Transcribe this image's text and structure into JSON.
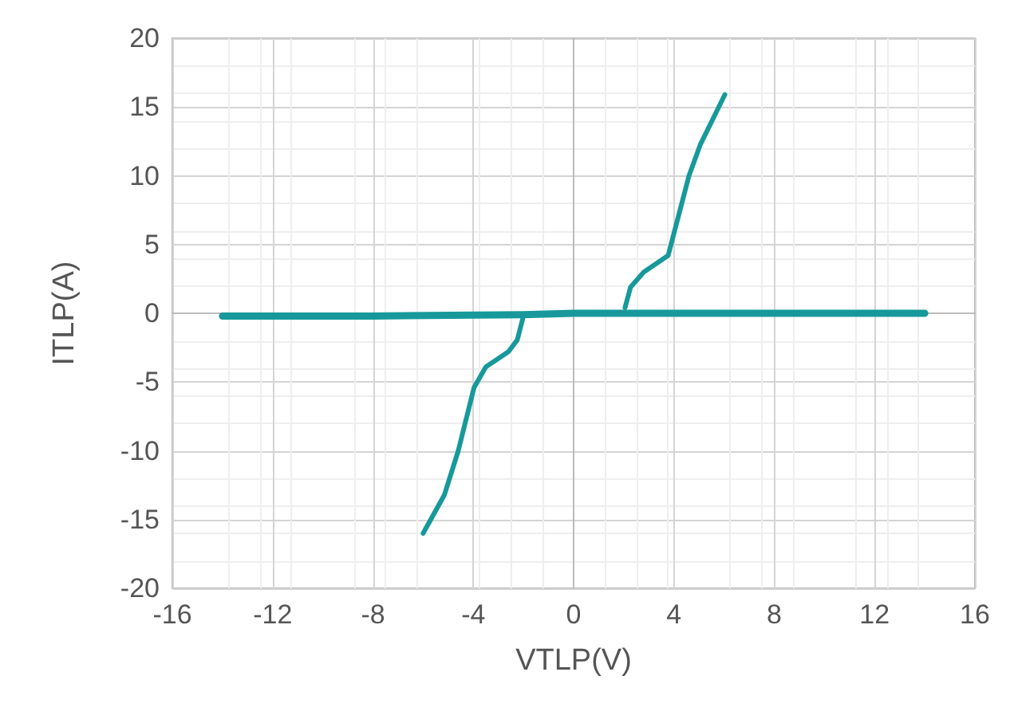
{
  "chart_data": {
    "type": "line",
    "xlabel": "VTLP(V)",
    "ylabel": "ITLP(A)",
    "xlim": [
      -16,
      16
    ],
    "xticks": [
      -16,
      -12,
      -8,
      -4,
      0,
      4,
      8,
      12,
      16
    ],
    "ylim": [
      -20,
      20
    ],
    "yticks": [
      -20,
      -15,
      -10,
      -5,
      0,
      5,
      10,
      15,
      20
    ],
    "grid": true,
    "marker": "none",
    "line_style": "solid",
    "series": [
      {
        "color": "#17999b",
        "x": [
          -6,
          -5.15,
          -4.6,
          -3.97,
          -3.5,
          -2.6,
          -2.25,
          -2.03
        ],
        "values": [
          -16,
          -13.2,
          -10,
          -5.4,
          -3.9,
          -2.8,
          -1.95,
          -0.4
        ]
      },
      {
        "color": "#17999b",
        "x": [
          2.05,
          2.27,
          2.8,
          3.77,
          4.6,
          5.06,
          6.03
        ],
        "values": [
          0.4,
          1.9,
          3,
          4.2,
          10,
          12.3,
          15.9
        ]
      },
      {
        "color": "#17999b",
        "x": [
          -14,
          -8,
          -2,
          0,
          2,
          14
        ],
        "values": [
          -0.2,
          -0.2,
          -0.1,
          0,
          0,
          0
        ]
      }
    ]
  }
}
